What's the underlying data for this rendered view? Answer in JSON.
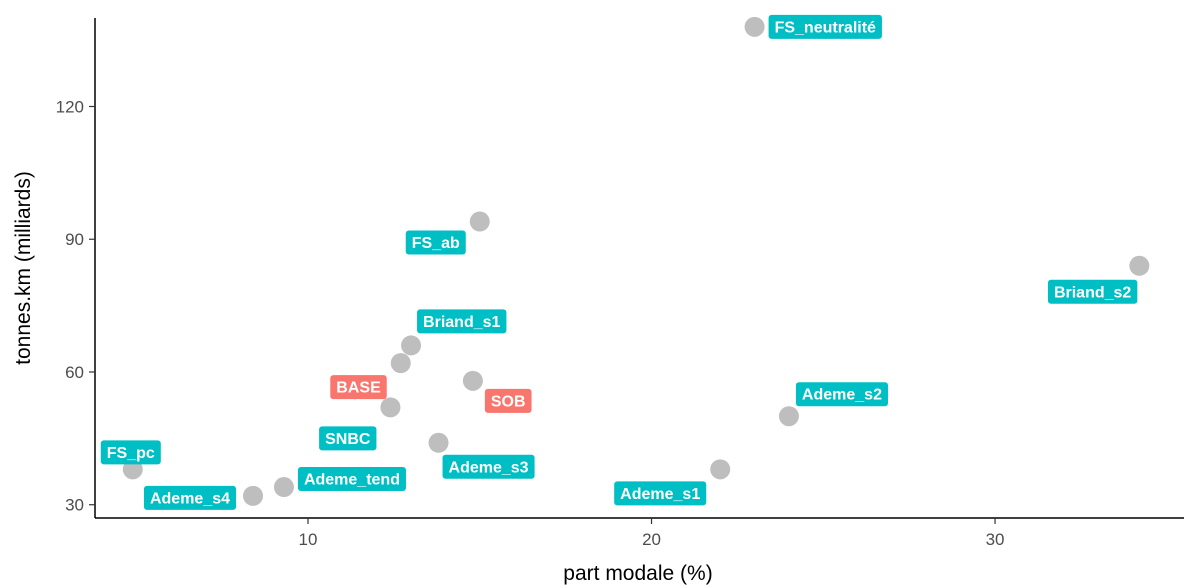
{
  "chart_data": {
    "type": "scatter",
    "title": "",
    "xlabel": "part modale (%)",
    "ylabel": "tonnes.km (milliards)",
    "xlim": [
      3.8,
      35.5
    ],
    "ylim": [
      27,
      140
    ],
    "x_ticks": [
      10,
      20,
      30
    ],
    "y_ticks": [
      30,
      60,
      90,
      120
    ],
    "grid": false,
    "point_color": "#bebebe",
    "label_colors": {
      "scenario": "#00bfc4",
      "reference": "#f8766d"
    },
    "label_text_color": "#ffffff",
    "points": [
      {
        "label": "FS_neutralité",
        "x": 23.0,
        "y": 138,
        "group": "scenario"
      },
      {
        "label": "FS_ab",
        "x": 15.0,
        "y": 94,
        "group": "scenario"
      },
      {
        "label": "Briand_s2",
        "x": 34.2,
        "y": 84,
        "group": "scenario"
      },
      {
        "label": "Briand_s1",
        "x": 13.0,
        "y": 66,
        "group": "scenario"
      },
      {
        "label": "BASE",
        "x": 12.7,
        "y": 62,
        "group": "reference"
      },
      {
        "label": "SOB",
        "x": 14.8,
        "y": 58,
        "group": "reference"
      },
      {
        "label": "SNBC",
        "x": 12.4,
        "y": 52,
        "group": "scenario"
      },
      {
        "label": "Ademe_s2",
        "x": 24.0,
        "y": 50,
        "group": "scenario"
      },
      {
        "label": "Ademe_s3",
        "x": 13.8,
        "y": 44,
        "group": "scenario"
      },
      {
        "label": "FS_pc",
        "x": 4.9,
        "y": 38,
        "group": "scenario"
      },
      {
        "label": "Ademe_s1",
        "x": 22.0,
        "y": 38,
        "group": "scenario"
      },
      {
        "label": "Ademe_tend",
        "x": 9.3,
        "y": 34,
        "group": "scenario"
      },
      {
        "label": "Ademe_s4",
        "x": 8.4,
        "y": 32,
        "group": "scenario"
      }
    ]
  }
}
